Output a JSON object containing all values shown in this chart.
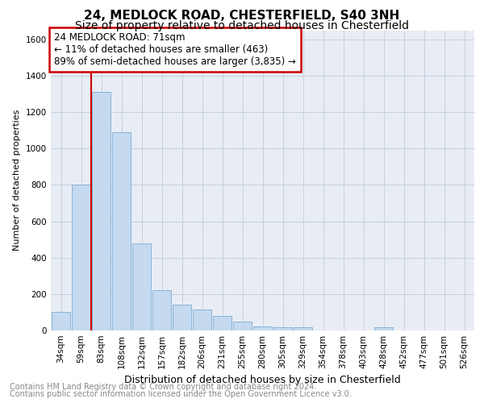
{
  "title": "24, MEDLOCK ROAD, CHESTERFIELD, S40 3NH",
  "subtitle": "Size of property relative to detached houses in Chesterfield",
  "xlabel": "Distribution of detached houses by size in Chesterfield",
  "ylabel": "Number of detached properties",
  "footnote1": "Contains HM Land Registry data © Crown copyright and database right 2024.",
  "footnote2": "Contains public sector information licensed under the Open Government Licence v3.0.",
  "bar_labels": [
    "34sqm",
    "59sqm",
    "83sqm",
    "108sqm",
    "132sqm",
    "157sqm",
    "182sqm",
    "206sqm",
    "231sqm",
    "255sqm",
    "280sqm",
    "305sqm",
    "329sqm",
    "354sqm",
    "378sqm",
    "403sqm",
    "428sqm",
    "452sqm",
    "477sqm",
    "501sqm",
    "526sqm"
  ],
  "bar_values": [
    100,
    800,
    1310,
    1090,
    480,
    220,
    140,
    115,
    80,
    50,
    20,
    18,
    18,
    0,
    0,
    0,
    18,
    0,
    0,
    0,
    0
  ],
  "bar_color": "#c5d9ef",
  "bar_edge_color": "#7aadd4",
  "annotation_line1": "24 MEDLOCK ROAD: 71sqm",
  "annotation_line2": "← 11% of detached houses are smaller (463)",
  "annotation_line3": "89% of semi-detached houses are larger (3,835) →",
  "annotation_box_color": "#ffffff",
  "annotation_box_edge_color": "#cc0000",
  "vline_color": "#cc0000",
  "vline_x": 1.5,
  "ylim": [
    0,
    1650
  ],
  "yticks": [
    0,
    200,
    400,
    600,
    800,
    1000,
    1200,
    1400,
    1600
  ],
  "grid_color": "#c8d0dc",
  "background_color": "#e8edf5",
  "title_fontsize": 11,
  "subtitle_fontsize": 10,
  "xlabel_fontsize": 9,
  "ylabel_fontsize": 8,
  "tick_fontsize": 7.5,
  "annotation_fontsize": 8.5,
  "footnote_fontsize": 7
}
